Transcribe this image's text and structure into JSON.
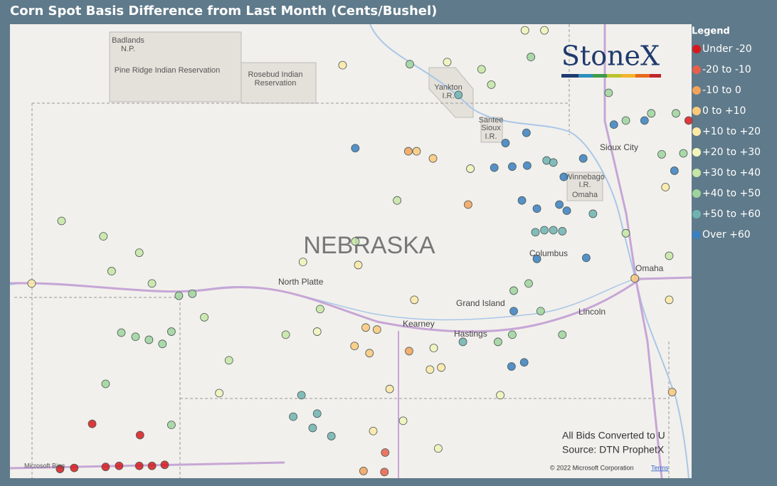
{
  "chart_data": {
    "type": "scatter",
    "title": "Corn Spot Basis Difference from Last Month (Cents/Bushel)",
    "legend_title": "Legend",
    "legend": "right",
    "xlim": [
      -104.33,
      -95.21
    ],
    "ylim": [
      39.28,
      43.71
    ],
    "series": [
      {
        "name": "Under -20",
        "color": "#d7191c",
        "x": [
          -103.23,
          -102.59,
          -103.66,
          -103.47,
          -103.05,
          -102.87,
          -102.6,
          -102.43,
          -102.26,
          -95.25
        ],
        "y": [
          39.81,
          39.7,
          39.37,
          39.38,
          39.39,
          39.4,
          39.4,
          39.4,
          39.41,
          42.77
        ]
      },
      {
        "name": "-20 to -10",
        "color": "#e8604a",
        "x": [
          -99.31,
          -99.32
        ],
        "y": [
          39.53,
          39.34
        ]
      },
      {
        "name": "-10 to 0",
        "color": "#f4a259",
        "x": [
          -99.0,
          -98.99,
          -99.6,
          -98.2
        ],
        "y": [
          42.47,
          40.52,
          39.35,
          41.95
        ]
      },
      {
        "name": "0 to +10",
        "color": "#fbc97a",
        "x": [
          -98.89,
          -98.67,
          -99.57,
          -99.42,
          -99.72,
          -99.52,
          -95.97,
          -95.47
        ],
        "y": [
          42.47,
          42.4,
          40.75,
          40.73,
          40.57,
          40.5,
          41.23,
          40.12
        ]
      },
      {
        "name": "+10 to +20",
        "color": "#fde9a5",
        "x": [
          -99.88,
          -104.04,
          -99.67,
          -98.92,
          -98.71,
          -98.56,
          -99.25,
          -99.47,
          -95.51,
          -95.56
        ],
        "y": [
          43.31,
          41.18,
          41.36,
          41.02,
          40.34,
          40.36,
          40.15,
          39.74,
          41.02,
          42.12
        ]
      },
      {
        "name": "+20 to +30",
        "color": "#f1f5b8",
        "x": [
          -97.44,
          -97.18,
          -98.48,
          -98.17,
          -100.41,
          -98.66,
          -100.22,
          -101.53,
          -99.07,
          -98.6,
          -97.77
        ],
        "y": [
          43.65,
          43.65,
          43.34,
          42.3,
          41.39,
          40.55,
          40.71,
          40.11,
          39.84,
          39.57,
          40.09
        ]
      },
      {
        "name": "+30 to +40",
        "color": "#c7e6a5",
        "x": [
          -103.64,
          -103.08,
          -102.6,
          -102.97,
          -102.43,
          -101.73,
          -101.4,
          -100.64,
          -100.18,
          -99.71,
          -99.15,
          -98.02,
          -97.89,
          -96.09,
          -95.51
        ],
        "y": [
          41.79,
          41.64,
          41.48,
          41.3,
          41.18,
          40.85,
          40.43,
          40.68,
          40.93,
          41.59,
          41.99,
          43.27,
          43.12,
          41.67,
          41.45
        ]
      },
      {
        "name": "+40 to +50",
        "color": "#9fd39c",
        "x": [
          -102.84,
          -102.65,
          -102.47,
          -102.29,
          -102.17,
          -103.05,
          -102.17,
          -102.07,
          -101.89,
          -98.98,
          -97.36,
          -97.59,
          -97.39,
          -97.23,
          -96.94,
          -96.32,
          -96.09,
          -95.75,
          -95.42,
          -95.61,
          -95.32,
          -97.8,
          -97.61
        ],
        "y": [
          40.7,
          40.66,
          40.63,
          40.59,
          40.71,
          40.2,
          39.8,
          41.06,
          41.08,
          43.32,
          43.39,
          41.11,
          41.18,
          40.91,
          40.68,
          43.04,
          42.77,
          42.84,
          42.84,
          42.44,
          42.45,
          40.61,
          40.68
        ]
      },
      {
        "name": "+50 to +60",
        "color": "#6fb3b0",
        "x": [
          -98.33,
          -97.15,
          -97.06,
          -97.3,
          -97.18,
          -97.06,
          -96.94,
          -96.53,
          -100.43,
          -100.54,
          -100.22,
          -100.28,
          -100.03,
          -98.27
        ],
        "y": [
          43.02,
          42.38,
          42.36,
          41.68,
          41.7,
          41.7,
          41.69,
          41.86,
          40.09,
          39.88,
          39.91,
          39.77,
          39.69,
          40.61
        ]
      },
      {
        "name": "Over +60",
        "color": "#3a7fbf",
        "x": [
          -99.71,
          -97.7,
          -97.42,
          -97.85,
          -97.61,
          -97.41,
          -96.92,
          -96.66,
          -96.25,
          -95.84,
          -95.44,
          -96.88,
          -96.98,
          -97.48,
          -97.28,
          -96.62,
          -97.28,
          -97.59,
          -97.62,
          -97.45
        ],
        "y": [
          42.5,
          42.55,
          42.65,
          42.31,
          42.32,
          42.33,
          42.22,
          42.4,
          42.73,
          42.77,
          42.28,
          41.89,
          41.95,
          41.99,
          41.91,
          41.43,
          41.42,
          40.91,
          40.37,
          40.41
        ]
      }
    ],
    "map_labels": [
      "Badlands",
      "N.P.",
      "Pine Ridge Indian Reservation",
      "Rosebud Indian",
      "Reservation",
      "Yankton",
      "I.R.",
      "Santee",
      "Sioux",
      "I.R.",
      "Sioux City",
      "Winnebago",
      "I.R.",
      "Omaha",
      "NEBRASKA",
      "North Platte",
      "Columbus",
      "Omaha",
      "Grand Island",
      "Kearney",
      "Hastings",
      "Lincoln"
    ],
    "notes": [
      "All Bids Converted to U",
      "Source: DTN ProphetX"
    ],
    "brand": "StoneX",
    "copyright": "© 2022 Microsoft Corporation",
    "terms": "Terms",
    "bing": "Microsoft Bing"
  }
}
